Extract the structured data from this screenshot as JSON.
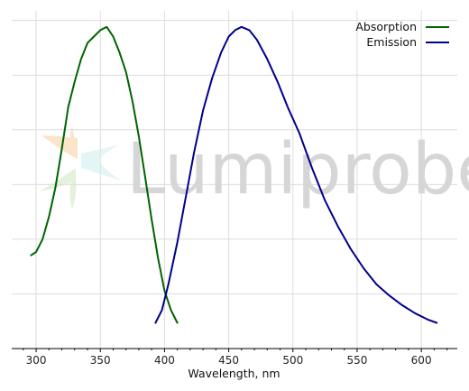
{
  "chart_data": {
    "type": "line",
    "title": "",
    "xlabel": "Wavelength, nm",
    "ylabel": "",
    "xlim": [
      281,
      628
    ],
    "ylim": [
      0,
      1.05
    ],
    "x_ticks": [
      300,
      350,
      400,
      450,
      500,
      550,
      600
    ],
    "y_ticks": [
      0,
      0.17,
      0.34,
      0.51,
      0.68,
      0.85,
      1.02
    ],
    "grid": true,
    "legend_position": "top-right",
    "watermark": "Lumiprobe",
    "series": [
      {
        "name": "Absorption",
        "color": "#006400",
        "points": [
          [
            296,
            0.29
          ],
          [
            300,
            0.3
          ],
          [
            305,
            0.34
          ],
          [
            310,
            0.41
          ],
          [
            315,
            0.5
          ],
          [
            320,
            0.62
          ],
          [
            325,
            0.75
          ],
          [
            330,
            0.83
          ],
          [
            335,
            0.9
          ],
          [
            340,
            0.95
          ],
          [
            345,
            0.97
          ],
          [
            350,
            0.99
          ],
          [
            355,
            1.0
          ],
          [
            360,
            0.97
          ],
          [
            365,
            0.92
          ],
          [
            370,
            0.86
          ],
          [
            375,
            0.77
          ],
          [
            380,
            0.66
          ],
          [
            385,
            0.53
          ],
          [
            390,
            0.4
          ],
          [
            395,
            0.28
          ],
          [
            400,
            0.18
          ],
          [
            405,
            0.12
          ],
          [
            410,
            0.08
          ]
        ]
      },
      {
        "name": "Emission",
        "color": "#00008b",
        "points": [
          [
            393,
            0.08
          ],
          [
            398,
            0.12
          ],
          [
            403,
            0.2
          ],
          [
            410,
            0.33
          ],
          [
            417,
            0.48
          ],
          [
            423,
            0.61
          ],
          [
            430,
            0.74
          ],
          [
            437,
            0.84
          ],
          [
            444,
            0.92
          ],
          [
            450,
            0.97
          ],
          [
            455,
            0.99
          ],
          [
            460,
            1.0
          ],
          [
            466,
            0.99
          ],
          [
            472,
            0.96
          ],
          [
            480,
            0.9
          ],
          [
            488,
            0.83
          ],
          [
            496,
            0.75
          ],
          [
            505,
            0.67
          ],
          [
            515,
            0.56
          ],
          [
            525,
            0.46
          ],
          [
            535,
            0.38
          ],
          [
            545,
            0.31
          ],
          [
            555,
            0.25
          ],
          [
            565,
            0.2
          ],
          [
            575,
            0.165
          ],
          [
            585,
            0.135
          ],
          [
            595,
            0.11
          ],
          [
            605,
            0.09
          ],
          [
            612,
            0.08
          ]
        ]
      }
    ]
  }
}
